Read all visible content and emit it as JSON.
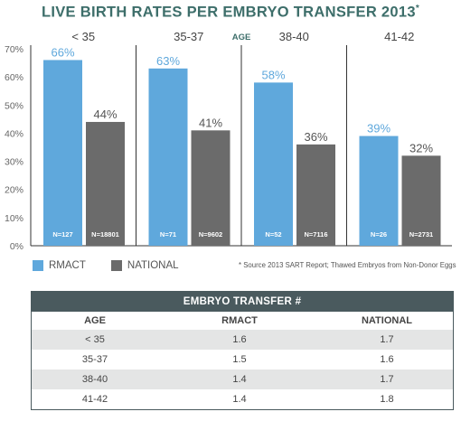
{
  "chart_data": {
    "type": "bar",
    "title": "LIVE BIRTH RATES PER EMBRYO TRANSFER 2013",
    "title_mark": "*",
    "axis_group_label": "AGE",
    "categories": [
      "< 35",
      "35-37",
      "38-40",
      "41-42"
    ],
    "series": [
      {
        "name": "RMACT",
        "values": [
          66,
          63,
          58,
          39
        ],
        "labels": [
          "66%",
          "63%",
          "58%",
          "39%"
        ],
        "n_labels": [
          "N=127",
          "N=71",
          "N=52",
          "N=26"
        ],
        "color": "#5fa8dc"
      },
      {
        "name": "NATIONAL",
        "values": [
          44,
          41,
          36,
          32
        ],
        "labels": [
          "44%",
          "41%",
          "36%",
          "32%"
        ],
        "n_labels": [
          "N=18801",
          "N=9602",
          "N=7116",
          "N=2731"
        ],
        "color": "#6b6b6b"
      }
    ],
    "yticks": [
      "0%",
      "10%",
      "20%",
      "30%",
      "40%",
      "50%",
      "60%",
      "70%"
    ],
    "ylim": [
      0,
      70
    ],
    "grid": false,
    "legend": "bottom-left"
  },
  "legend": {
    "rmact": "RMACT",
    "national": "NATIONAL"
  },
  "source_note": "* Source 2013 SART Report; Thawed Embryos from Non-Donor Eggs",
  "table": {
    "title": "EMBRYO TRANSFER #",
    "headers": [
      "AGE",
      "RMACT",
      "NATIONAL"
    ],
    "rows": [
      [
        "< 35",
        "1.6",
        "1.7"
      ],
      [
        "35-37",
        "1.5",
        "1.6"
      ],
      [
        "38-40",
        "1.4",
        "1.7"
      ],
      [
        "41-42",
        "1.4",
        "1.8"
      ]
    ]
  },
  "colors": {
    "rmact": "#5fa8dc",
    "national": "#6b6b6b",
    "title": "#3d6e6a",
    "table_header": "#4a5a5e"
  }
}
